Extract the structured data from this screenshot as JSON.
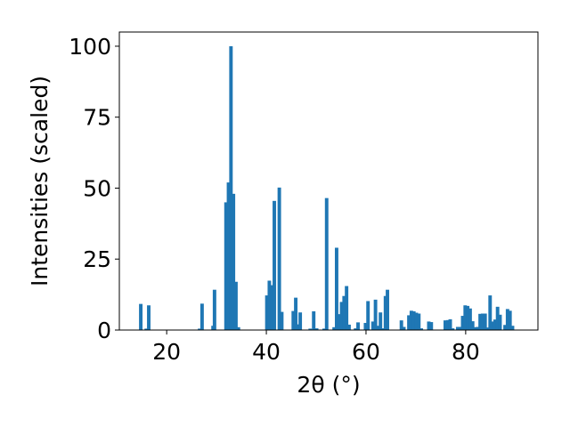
{
  "chart_data": {
    "type": "bar",
    "xlabel": "2θ (°)",
    "ylabel": "Intensities (scaled)",
    "xlim": [
      10.5,
      94.5
    ],
    "ylim": [
      0,
      105
    ],
    "xticks": [
      20,
      40,
      60,
      80
    ],
    "yticks": [
      0,
      25,
      50,
      75,
      100
    ],
    "bar_width": 0.7,
    "bar_color": "#1f77b4",
    "grid": false,
    "x": [
      14.8,
      15.9,
      16.4,
      26.6,
      27.1,
      29.3,
      29.6,
      31.9,
      32.4,
      32.9,
      33.4,
      33.9,
      34.4,
      40.1,
      40.6,
      41.1,
      41.6,
      42.6,
      43.1,
      45.4,
      45.9,
      46.3,
      46.8,
      48.8,
      49.5,
      50.1,
      51.6,
      52.1,
      53.6,
      54.1,
      54.6,
      55.1,
      55.6,
      56.1,
      56.6,
      57.9,
      58.4,
      59.9,
      60.4,
      61.4,
      61.9,
      62.4,
      62.9,
      63.4,
      63.9,
      64.3,
      67.1,
      67.6,
      68.6,
      69.1,
      69.6,
      70.1,
      70.6,
      71.1,
      72.6,
      73.1,
      75.9,
      76.4,
      76.9,
      77.4,
      78.4,
      78.9,
      79.4,
      79.9,
      80.4,
      80.9,
      81.4,
      81.9,
      82.4,
      82.9,
      83.4,
      83.9,
      84.4,
      84.9,
      85.4,
      85.9,
      86.4,
      86.9,
      87.9,
      88.4,
      88.9,
      89.4
    ],
    "values": [
      9.2,
      0.5,
      8.7,
      0.5,
      9.3,
      1.5,
      14.2,
      45.0,
      52.0,
      100.0,
      48.0,
      17.0,
      1.0,
      12.2,
      17.4,
      15.8,
      45.5,
      50.2,
      6.4,
      6.7,
      11.4,
      2.0,
      6.2,
      0.5,
      6.6,
      0.6,
      0.5,
      46.5,
      1.0,
      29.0,
      5.6,
      9.9,
      12.0,
      15.5,
      1.9,
      0.6,
      2.7,
      2.5,
      10.2,
      3.0,
      10.7,
      1.5,
      6.2,
      0.6,
      12.0,
      14.2,
      3.4,
      1.1,
      5.2,
      6.8,
      6.6,
      6.1,
      5.8,
      0.6,
      3.0,
      2.8,
      3.4,
      3.5,
      3.8,
      0.6,
      1.1,
      1.1,
      5.0,
      8.7,
      8.5,
      7.6,
      3.1,
      1.0,
      1.1,
      5.7,
      5.8,
      5.8,
      0.9,
      12.2,
      3.0,
      3.7,
      8.2,
      5.4,
      1.8,
      7.4,
      6.8,
      1.5
    ]
  }
}
